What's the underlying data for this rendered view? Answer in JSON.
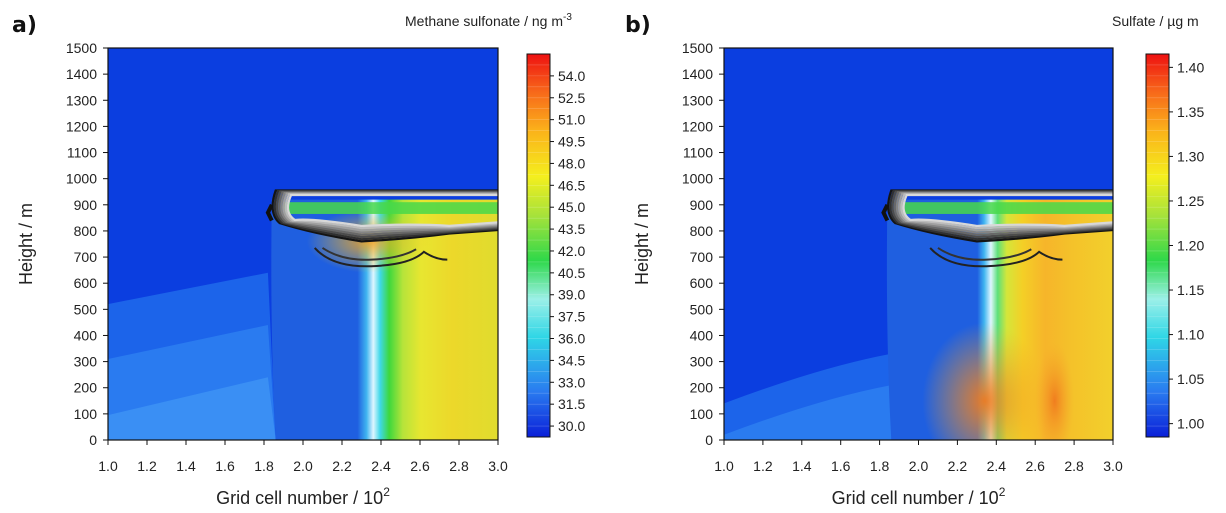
{
  "chart_data": [
    {
      "type": "heatmap",
      "panel_label": "a)",
      "xlabel": "Grid cell number / 10",
      "xlabel_sup": "2",
      "ylabel": "Height / m",
      "xlim": [
        1.0,
        3.0
      ],
      "ylim": [
        0,
        1500
      ],
      "xticks": [
        "1.0",
        "1.2",
        "1.4",
        "1.6",
        "1.8",
        "2.0",
        "2.2",
        "2.4",
        "2.6",
        "2.8",
        "3.0"
      ],
      "yticks": [
        "0",
        "100",
        "200",
        "300",
        "400",
        "500",
        "600",
        "700",
        "800",
        "900",
        "1000",
        "1100",
        "1200",
        "1300",
        "1400",
        "1500"
      ],
      "colorbar_title": "Methane sulfonate / ng m",
      "colorbar_title_sup": "-3",
      "colorbar_ticks": [
        "30.0",
        "31.5",
        "33.0",
        "34.5",
        "36.0",
        "37.5",
        "39.0",
        "40.5",
        "42.0",
        "43.5",
        "45.0",
        "46.5",
        "48.0",
        "49.5",
        "51.0",
        "52.5",
        "54.0"
      ],
      "colorbar_range": [
        29.25,
        55.5
      ]
    },
    {
      "type": "heatmap",
      "panel_label": "b)",
      "xlabel": "Grid cell number / 10",
      "xlabel_sup": "2",
      "ylabel": "Height / m",
      "xlim": [
        1.0,
        3.0
      ],
      "ylim": [
        0,
        1500
      ],
      "xticks": [
        "1.0",
        "1.2",
        "1.4",
        "1.6",
        "1.8",
        "2.0",
        "2.2",
        "2.4",
        "2.6",
        "2.8",
        "3.0"
      ],
      "yticks": [
        "0",
        "100",
        "200",
        "300",
        "400",
        "500",
        "600",
        "700",
        "800",
        "900",
        "1000",
        "1100",
        "1200",
        "1300",
        "1400",
        "1500"
      ],
      "colorbar_title": "Sulfate / µg m",
      "colorbar_ticks": [
        "1.00",
        "1.05",
        "1.10",
        "1.15",
        "1.20",
        "1.25",
        "1.30",
        "1.35",
        "1.40"
      ],
      "colorbar_range": [
        0.985,
        1.415
      ]
    }
  ]
}
